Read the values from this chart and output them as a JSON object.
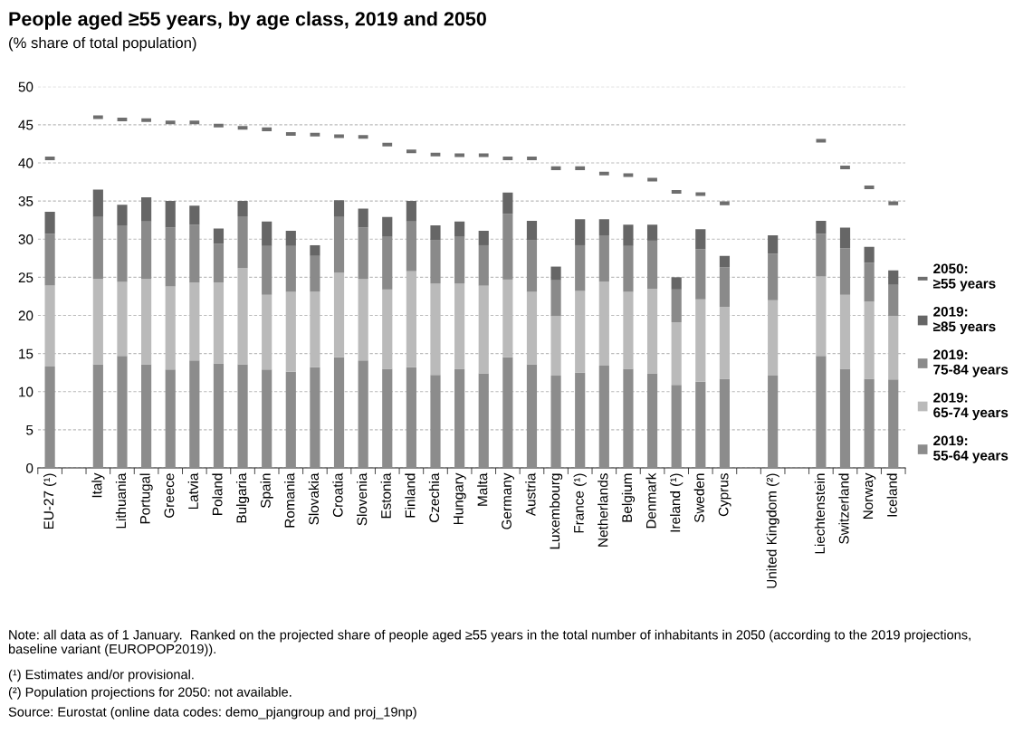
{
  "chart_data": {
    "type": "bar",
    "stacked": true,
    "title": "People aged ≥55 years, by age class, 2019 and 2050",
    "subtitle": "(% share of total population)",
    "categories": [
      "EU-27 (¹)",
      null,
      "Italy",
      "Lithuania",
      "Portugal",
      "Greece",
      "Latvia",
      "Poland",
      "Bulgaria",
      "Spain",
      "Romania",
      "Slovakia",
      "Croatia",
      "Slovenia",
      "Estonia",
      "Finland",
      "Czechia",
      "Hungary",
      "Malta",
      "Germany",
      "Austria",
      "Luxembourg",
      "France (¹)",
      "Netherlands",
      "Belgium",
      "Denmark",
      "Ireland (¹)",
      "Sweden",
      "Cyprus",
      null,
      "United Kingdom (²)",
      null,
      "Liechtenstein",
      "Switzerland",
      "Norway",
      "Iceland"
    ],
    "series": [
      {
        "name": "2019:\n55-64 years",
        "color": "#8c8c8c",
        "values": [
          13.3,
          null,
          13.6,
          14.7,
          13.6,
          12.9,
          14.1,
          13.7,
          13.6,
          12.9,
          12.6,
          13.2,
          14.5,
          14.1,
          13.0,
          13.2,
          12.2,
          13.0,
          12.4,
          14.5,
          13.6,
          12.1,
          12.5,
          13.4,
          13.0,
          12.4,
          10.9,
          11.3,
          11.7,
          null,
          12.1,
          null,
          14.7,
          13.0,
          11.7,
          11.6
        ]
      },
      {
        "name": "2019:\n65-74 years",
        "color": "#bababa",
        "values": [
          10.6,
          null,
          11.2,
          9.7,
          11.2,
          10.9,
          10.2,
          10.6,
          12.6,
          9.8,
          10.5,
          9.9,
          11.1,
          10.7,
          10.4,
          12.6,
          12.0,
          11.2,
          11.5,
          10.2,
          9.5,
          7.8,
          10.7,
          11.0,
          10.1,
          11.1,
          8.2,
          10.8,
          9.4,
          null,
          9.9,
          null,
          10.4,
          9.7,
          10.1,
          8.3
        ]
      },
      {
        "name": "2019:\n75-84 years",
        "color": "#8a8a8a",
        "values": [
          6.8,
          null,
          8.1,
          7.4,
          7.5,
          7.7,
          7.6,
          5.1,
          6.8,
          6.4,
          6.0,
          4.7,
          7.3,
          6.7,
          6.9,
          6.5,
          5.7,
          6.1,
          5.3,
          8.6,
          6.8,
          4.7,
          6.0,
          6.1,
          6.0,
          6.3,
          4.3,
          6.6,
          5.2,
          null,
          6.1,
          null,
          5.6,
          6.1,
          5.1,
          4.1
        ]
      },
      {
        "name": "2019:\n≥85 years",
        "color": "#666666",
        "values": [
          2.9,
          null,
          3.6,
          2.7,
          3.2,
          3.5,
          2.5,
          2.0,
          2.0,
          3.2,
          2.0,
          1.4,
          2.2,
          2.5,
          2.6,
          2.7,
          1.9,
          2.0,
          1.9,
          2.8,
          2.5,
          1.8,
          3.4,
          2.1,
          2.8,
          2.1,
          1.6,
          2.6,
          1.5,
          null,
          2.4,
          null,
          1.7,
          2.7,
          2.1,
          1.9
        ]
      },
      {
        "name": "2050:\n≥55 years",
        "color": "#6e6e6e",
        "type": "scatter",
        "marker": "square",
        "values": [
          40.6,
          null,
          46.0,
          45.7,
          45.6,
          45.3,
          45.3,
          44.9,
          44.6,
          44.4,
          43.8,
          43.7,
          43.5,
          43.4,
          42.4,
          41.5,
          41.1,
          41.0,
          41.0,
          40.6,
          40.6,
          39.3,
          39.3,
          38.6,
          38.4,
          37.8,
          36.2,
          35.9,
          34.7,
          null,
          null,
          null,
          42.9,
          39.4,
          36.8,
          34.7
        ]
      }
    ],
    "ylim": [
      0,
      50
    ],
    "yticks": [
      0,
      5,
      10,
      15,
      20,
      25,
      30,
      35,
      40,
      45,
      50
    ],
    "grid": "y",
    "legend": "right",
    "annotations": [
      "Note: all data as of 1 January.  Ranked on the projected share of people aged ≥55 years in the total number of inhabitants in 2050 (according to the 2019 projections, baseline variant (EUROPOP2019)).",
      "(¹) Estimates and/or provisional.",
      "(²) Population projections for 2050: not available.",
      "Source: Eurostat (online data codes: demo_pjangroup and proj_19np)"
    ]
  }
}
